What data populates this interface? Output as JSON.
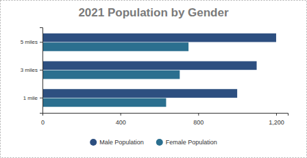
{
  "chart_data": {
    "type": "bar",
    "orientation": "horizontal",
    "title": "2021 Population by Gender",
    "categories": [
      "1 mile",
      "3 miles",
      "5 miles"
    ],
    "series": [
      {
        "name": "Male Population",
        "color": "#2d4f80",
        "values": [
          1000,
          1100,
          1200
        ]
      },
      {
        "name": "Female Population",
        "color": "#2b6f8f",
        "values": [
          635,
          705,
          750
        ]
      }
    ],
    "xlim": [
      0,
      1260
    ],
    "xticks": [
      0,
      400,
      800,
      {
        "value": 1200,
        "label": "1,200"
      }
    ],
    "grid": false,
    "legend": "bottom"
  }
}
